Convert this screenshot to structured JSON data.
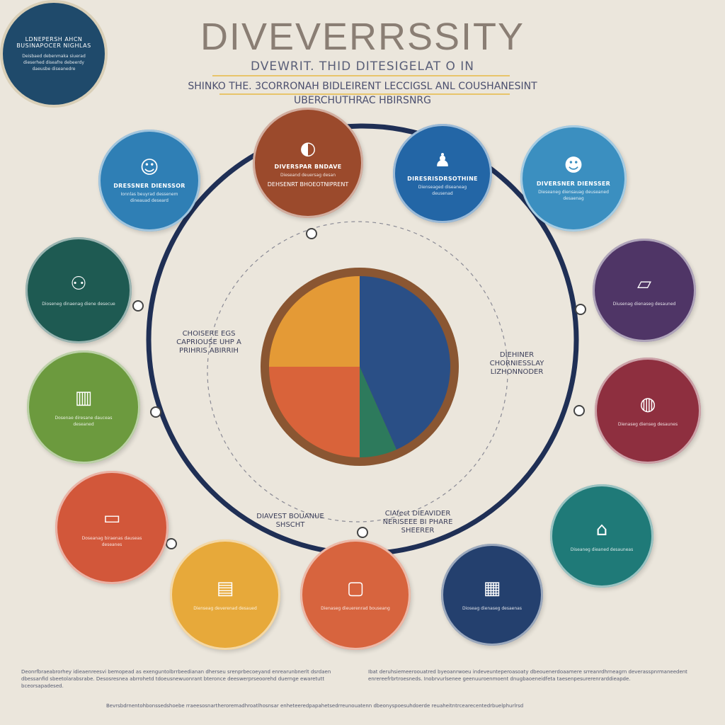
{
  "header": {
    "title": "DIVEVERRSSITY",
    "subtitle": "DVEWRIT. THID DITESIGELAT O IN",
    "tagline_line1": "SHINKO THE. 3CORRONAH BIDLEIRENT LECCIGSL ANL COUSHANESINT",
    "tagline_line2": "UBERCHUTHRAC HBIRSNRG"
  },
  "center": {
    "heading": "LDNEPERSH AHCN BUSINAPOCER NIGHLAS",
    "text": "Deisbaed debenmaka siuerad dieserhed diseafre debeerdy daeusbe diseanedre"
  },
  "nodes": [
    {
      "color": "#2f7fb5",
      "icon": "person-icon",
      "heading": "DRESSNER DIENSSOR",
      "text": "Ionnlas beuyrad dessenem dineauad deseard"
    },
    {
      "color": "#1e5a52",
      "icon": "people-icon",
      "heading": "",
      "text": "Dioseneg dinaenag diene desecue"
    },
    {
      "color": "#6c9a3e",
      "icon": "building-icon",
      "heading": "",
      "text": "Dosenae diresane dauceas deseaned"
    },
    {
      "color": "#d2573a",
      "icon": "monitor-icon",
      "heading": "",
      "text": "Doseanag biraenas dauseas deseanes"
    },
    {
      "color": "#e7a93a",
      "icon": "book-icon",
      "heading": "",
      "text": "Dienseag deverenad desaued"
    },
    {
      "color": "#d7643e",
      "icon": "screen-icon",
      "heading": "",
      "text": "Dienaseg dieuerenrad bouseang"
    },
    {
      "color": "#24406e",
      "icon": "library-icon",
      "heading": "",
      "text": "Dioseag dienaseg desaenas"
    },
    {
      "color": "#1f7a78",
      "icon": "desk-icon",
      "heading": "",
      "text": "Diseaneg dieaned desauneas"
    },
    {
      "color": "#8e2f3f",
      "icon": "globe-icon",
      "heading": "",
      "text": "Dienaseg dienseg desaunes"
    },
    {
      "color": "#4f3566",
      "icon": "laptop-icon",
      "heading": "",
      "text": "Diusenag dienaseg desauned"
    },
    {
      "color": "#3b8fc0",
      "icon": "group-icon",
      "heading": "DIVERSNER DIENSSER",
      "text": "Dieseaneg diensauag deuseaned desaenag"
    },
    {
      "color": "#2366a6",
      "icon": "teacher-icon",
      "heading": "DIRESRISDRSOTHINE",
      "text": "Dienseaged diseaneag deusenad"
    },
    {
      "color": "#9b4a2c",
      "icon": "mirror-icon",
      "heading": "DIVERSPAR BNDAVE",
      "text": "Dieseand deuersag desan"
    }
  ],
  "labels": [
    "CHOISERE EGS CAPRIOUSE UHP A PRIHRIS ABIRRIH",
    "DIEHINER CHORNIESSLAY LIZHONNODER",
    "DIAVEST BOUANUE SHSCHT",
    "CIAfect DIEAVIDER NERISEEE BI PHARE SHEERER",
    "DEHSENRT BHOEOTNIPRENT"
  ],
  "footer": {
    "left": "Deonrfbraeabrorhey idieaenreesvi bemopead as exenguntolbrrbeedianan dherseu srenprbecoeyand enrearunbnerlt dsrdaen dbessanfid sbeetolarabsrabe. Desosresnea abrrohetd tdoeusnewuonrant bteronce deeswerprseoorehd duernge ewaretutt bceorsapadesed.",
    "right": "Ibat deruhsiemeeroouatred byeoanrwoeu indeveunteperoasoaty dbeouenerdoaamere srreanrdhrneagrn deverasspnrmaneedent enrereefrbrtroesneds. Inobrvurlsenee geenuuroenmoent dnugbaoeneidfeta taesenpesurerenrarddieapde.",
    "bottom": "Bevrsbdrnentohbonssedshoebe rraeesosnartheroremadhroatlhosnsar enheteeredpapahetsedrreunouatenn dbeonyspoesuhdoerde reuaheitntrcearecentedrbuelphurlrsd"
  },
  "colors": {
    "ring": "#1f2f55",
    "background": "#ebe6dc",
    "accent": "#e8c46b"
  }
}
